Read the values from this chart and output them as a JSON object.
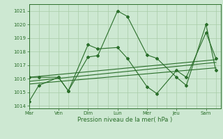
{
  "background_color": "#cde8d2",
  "grid_color": "#a8cca8",
  "line_color": "#2a6e2a",
  "title": "Pression niveau de la mer( hPa )",
  "ylim": [
    1013.8,
    1021.5
  ],
  "yticks": [
    1014,
    1015,
    1016,
    1017,
    1018,
    1019,
    1020,
    1021
  ],
  "day_labels": [
    "Mar",
    "Ven",
    "Dim",
    "Lun",
    "Mer",
    "Jeu",
    "Sam"
  ],
  "day_positions": [
    0,
    3,
    6,
    9,
    12,
    15,
    18
  ],
  "series1_x": [
    0,
    1,
    3,
    4,
    6,
    7,
    9,
    10,
    12,
    13,
    15,
    16,
    18,
    19
  ],
  "series1_y": [
    1014.3,
    1015.5,
    1016.1,
    1015.1,
    1017.6,
    1017.7,
    1021.0,
    1020.6,
    1017.75,
    1017.5,
    1016.1,
    1015.5,
    1020.0,
    1016.6
  ],
  "series2_x": [
    0,
    1,
    3,
    4,
    6,
    7,
    9,
    10,
    12,
    13,
    15,
    16,
    18,
    19
  ],
  "series2_y": [
    1016.1,
    1016.1,
    1016.1,
    1015.1,
    1018.5,
    1018.2,
    1018.3,
    1017.5,
    1015.4,
    1014.9,
    1016.6,
    1016.1,
    1019.4,
    1017.5
  ],
  "series3_x": [
    0,
    19
  ],
  "series3_y": [
    1015.8,
    1017.2
  ],
  "series4_x": [
    0,
    19
  ],
  "series4_y": [
    1015.6,
    1016.8
  ],
  "series5_x": [
    0,
    19
  ],
  "series5_y": [
    1016.1,
    1017.4
  ],
  "xlim": [
    0,
    19.5
  ]
}
